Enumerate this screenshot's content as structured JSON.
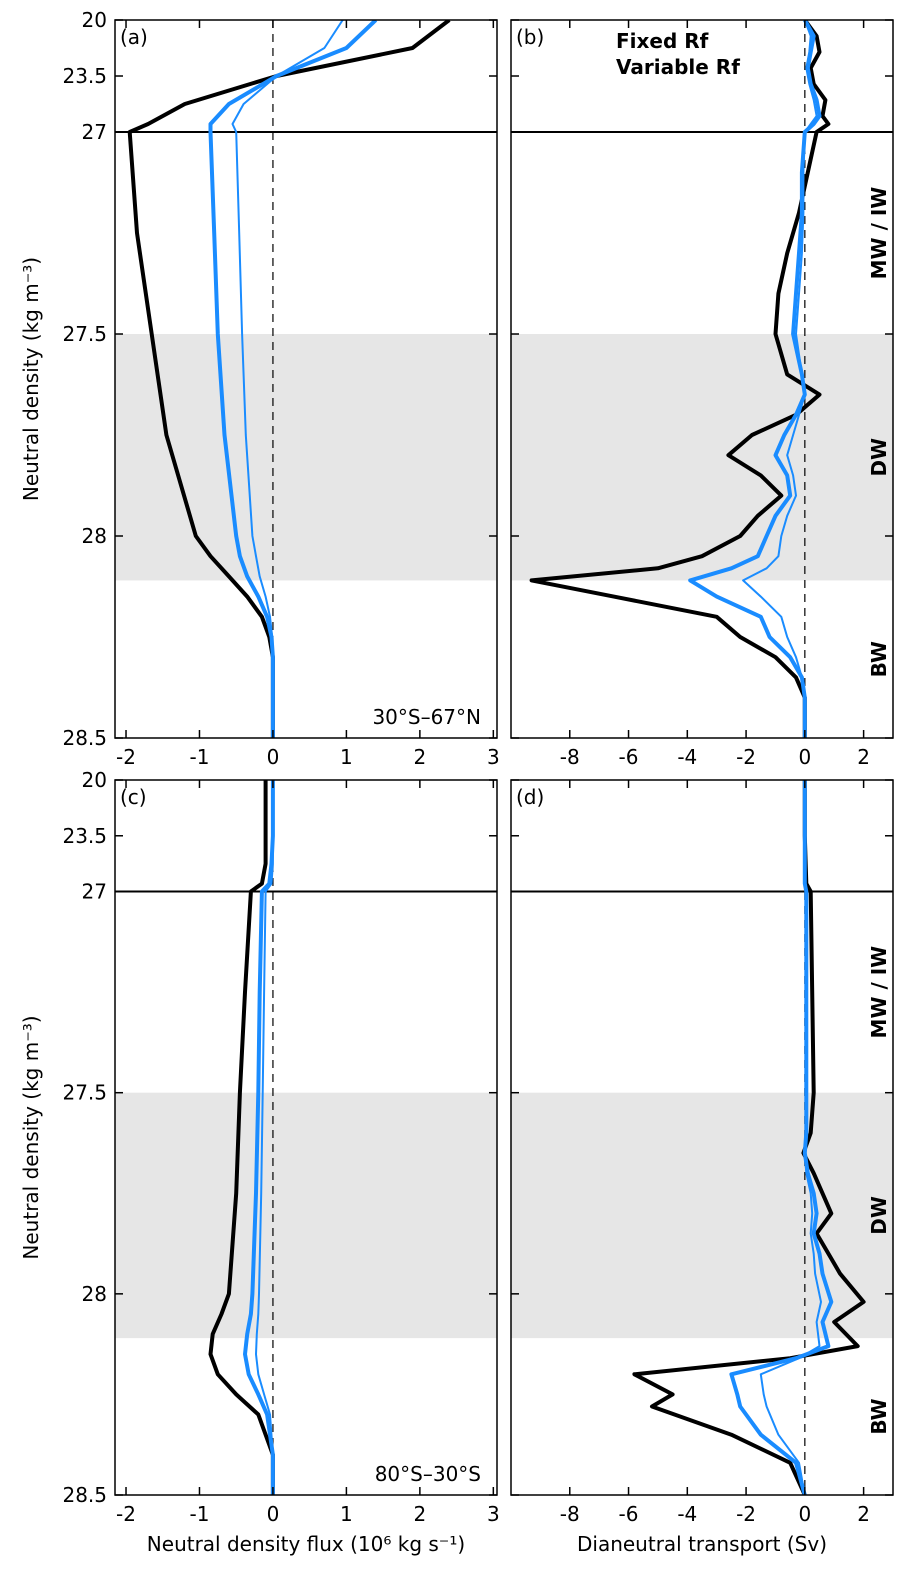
{
  "chart_data": [
    {
      "type": "line",
      "panel_label": "(a)",
      "annotation": "30°S–67°N",
      "ylabel": "Neutral density (kg m⁻³)",
      "ylim": [
        20,
        28.5
      ],
      "ybreak": 27,
      "yticks": [
        20,
        23.5,
        27,
        27.5,
        28,
        28.5
      ],
      "show_ytick_labels": true,
      "xlim": [
        -2.15,
        3.05
      ],
      "xticks": [
        -2,
        -1,
        0,
        1,
        2,
        3
      ],
      "shade": [
        27.5,
        28.11
      ],
      "zero_line": true,
      "y": [
        20,
        21.75,
        23.5,
        25.25,
        26.5,
        27,
        27.25,
        27.5,
        27.75,
        28.0,
        28.05,
        28.1,
        28.15,
        28.2,
        28.25,
        28.3,
        28.4,
        28.5
      ],
      "series": [
        {
          "color": "#000000",
          "linewidth": 4,
          "values": [
            2.4,
            1.9,
            0.05,
            -1.2,
            -1.7,
            -1.95,
            -1.85,
            -1.65,
            -1.45,
            -1.05,
            -0.85,
            -0.6,
            -0.35,
            -0.15,
            -0.05,
            0,
            0,
            0
          ]
        },
        {
          "color": "#1a8cff",
          "linewidth": 4,
          "values": [
            1.4,
            1.0,
            0.05,
            -0.6,
            -0.85,
            -0.85,
            -0.8,
            -0.75,
            -0.66,
            -0.5,
            -0.45,
            -0.35,
            -0.2,
            -0.08,
            -0.02,
            0,
            0,
            0
          ]
        },
        {
          "color": "#1a8cff",
          "linewidth": 2,
          "values": [
            0.95,
            0.7,
            0.05,
            -0.4,
            -0.55,
            -0.5,
            -0.46,
            -0.42,
            -0.37,
            -0.28,
            -0.23,
            -0.18,
            -0.1,
            -0.04,
            -0.01,
            0,
            0,
            0
          ]
        }
      ]
    },
    {
      "type": "line",
      "panel_label": "(b)",
      "side_labels": [
        "MW / IW",
        "DW",
        "BW"
      ],
      "ylim": [
        20,
        28.5
      ],
      "ybreak": 27,
      "yticks": [
        20,
        23.5,
        27,
        27.5,
        28,
        28.5
      ],
      "show_ytick_labels": false,
      "xlim": [
        -10,
        3
      ],
      "xticks": [
        -8,
        -6,
        -4,
        -2,
        0,
        2
      ],
      "shade": [
        27.5,
        28.11
      ],
      "zero_line": true,
      "y": [
        20,
        21,
        22,
        23,
        24,
        25,
        26,
        26.5,
        27,
        27.1,
        27.2,
        27.3,
        27.4,
        27.5,
        27.6,
        27.65,
        27.7,
        27.75,
        27.8,
        27.85,
        27.9,
        27.95,
        28.0,
        28.05,
        28.08,
        28.11,
        28.15,
        28.2,
        28.25,
        28.3,
        28.35,
        28.4,
        28.5
      ],
      "series": [
        {
          "name": "Fixed Rf",
          "color": "#000000",
          "linewidth": 4,
          "values": [
            0.0,
            0.4,
            0.5,
            0.2,
            0.3,
            0.7,
            0.6,
            0.8,
            0.4,
            0.1,
            -0.2,
            -0.6,
            -0.9,
            -1.0,
            -0.6,
            0.5,
            -0.3,
            -1.8,
            -2.6,
            -1.5,
            -0.8,
            -1.6,
            -2.2,
            -3.5,
            -5,
            -9.3,
            -6.5,
            -3,
            -2.2,
            -1,
            -0.3,
            0,
            0
          ]
        },
        {
          "name": "Variable Rf",
          "color": "#1a8cff",
          "linewidth": 4,
          "values": [
            0,
            0.3,
            0.2,
            0.1,
            0.2,
            0.4,
            0.5,
            0.3,
            0.0,
            -0.1,
            -0.1,
            -0.2,
            -0.3,
            -0.4,
            -0.1,
            0,
            -0.3,
            -0.7,
            -1.0,
            -0.6,
            -0.5,
            -1.0,
            -1.3,
            -1.6,
            -2.5,
            -3.9,
            -3.0,
            -1.5,
            -1.2,
            -0.5,
            -0.1,
            0,
            0
          ]
        },
        {
          "color": "#1a8cff",
          "linewidth": 2,
          "values": [
            0,
            0.2,
            0.15,
            0.05,
            0.15,
            0.3,
            0.4,
            0.2,
            0,
            -0.05,
            -0.05,
            -0.1,
            -0.2,
            -0.3,
            -0.1,
            0,
            -0.2,
            -0.4,
            -0.6,
            -0.4,
            -0.3,
            -0.6,
            -0.8,
            -0.9,
            -1.3,
            -2.1,
            -1.5,
            -0.8,
            -0.6,
            -0.3,
            -0.1,
            0,
            0
          ]
        }
      ]
    },
    {
      "type": "line",
      "panel_label": "(c)",
      "annotation": "80°S–30°S",
      "ylabel": "Neutral density (kg m⁻³)",
      "xlabel": "Neutral density flux (10⁶ kg s⁻¹)",
      "ylim": [
        20,
        28.5
      ],
      "ybreak": 27,
      "yticks": [
        20,
        23.5,
        27,
        27.5,
        28,
        28.5
      ],
      "show_ytick_labels": true,
      "xlim": [
        -2.15,
        3.05
      ],
      "xticks": [
        -2,
        -1,
        0,
        1,
        2,
        3
      ],
      "shade": [
        27.5,
        28.11
      ],
      "zero_line": true,
      "y": [
        20,
        21.75,
        23.5,
        25.25,
        26.5,
        27,
        27.25,
        27.5,
        27.75,
        28.0,
        28.05,
        28.1,
        28.15,
        28.2,
        28.25,
        28.3,
        28.4,
        28.5
      ],
      "series": [
        {
          "color": "#000000",
          "linewidth": 4,
          "values": [
            -0.1,
            -0.1,
            -0.1,
            -0.1,
            -0.15,
            -0.3,
            -0.38,
            -0.45,
            -0.5,
            -0.6,
            -0.7,
            -0.82,
            -0.85,
            -0.75,
            -0.5,
            -0.2,
            0,
            0
          ]
        },
        {
          "color": "#1a8cff",
          "linewidth": 4,
          "values": [
            0,
            0,
            0,
            -0.02,
            -0.05,
            -0.15,
            -0.18,
            -0.2,
            -0.23,
            -0.28,
            -0.3,
            -0.35,
            -0.38,
            -0.33,
            -0.2,
            -0.08,
            0,
            0
          ]
        },
        {
          "color": "#1a8cff",
          "linewidth": 2,
          "values": [
            0,
            0,
            0,
            0,
            -0.02,
            -0.1,
            -0.12,
            -0.14,
            -0.16,
            -0.19,
            -0.2,
            -0.22,
            -0.23,
            -0.2,
            -0.12,
            -0.04,
            0,
            0
          ]
        }
      ]
    },
    {
      "type": "line",
      "panel_label": "(d)",
      "side_labels": [
        "MW / IW",
        "DW",
        "BW"
      ],
      "xlabel": "Dianeutral transport (Sv)",
      "ylim": [
        20,
        28.5
      ],
      "ybreak": 27,
      "yticks": [
        20,
        23.5,
        27,
        27.5,
        28,
        28.5
      ],
      "show_ytick_labels": false,
      "xlim": [
        -10,
        3
      ],
      "xticks": [
        -8,
        -6,
        -4,
        -2,
        0,
        2
      ],
      "shade": [
        27.5,
        28.11
      ],
      "zero_line": true,
      "y": [
        20,
        23.5,
        26.5,
        27,
        27.25,
        27.5,
        27.6,
        27.65,
        27.7,
        27.75,
        27.8,
        27.85,
        27.9,
        27.95,
        28.02,
        28.07,
        28.13,
        28.16,
        28.2,
        28.25,
        28.28,
        28.35,
        28.42,
        28.5
      ],
      "series": [
        {
          "color": "#000000",
          "linewidth": 4,
          "values": [
            0,
            0,
            0.05,
            0.2,
            0.25,
            0.3,
            0.2,
            -0.05,
            0.3,
            0.6,
            0.9,
            0.4,
            0.8,
            1.2,
            2.0,
            1.0,
            1.8,
            -0.5,
            -5.8,
            -4.5,
            -5.2,
            -2.5,
            -0.5,
            0
          ]
        },
        {
          "color": "#1a8cff",
          "linewidth": 4,
          "values": [
            0,
            0,
            0,
            0.05,
            0.05,
            0.05,
            0.05,
            0,
            0.1,
            0.3,
            0.4,
            0.3,
            0.5,
            0.6,
            0.9,
            0.6,
            0.8,
            -0.3,
            -2.5,
            -2.3,
            -2.2,
            -1.5,
            -0.3,
            0
          ]
        },
        {
          "color": "#1a8cff",
          "linewidth": 2,
          "values": [
            0,
            0,
            0,
            0.03,
            0.03,
            0.03,
            0.03,
            0,
            0.05,
            0.2,
            0.25,
            0.2,
            0.3,
            0.35,
            0.55,
            0.4,
            0.5,
            -0.2,
            -1.5,
            -1.4,
            -1.3,
            -0.9,
            -0.2,
            0
          ]
        }
      ]
    }
  ]
}
